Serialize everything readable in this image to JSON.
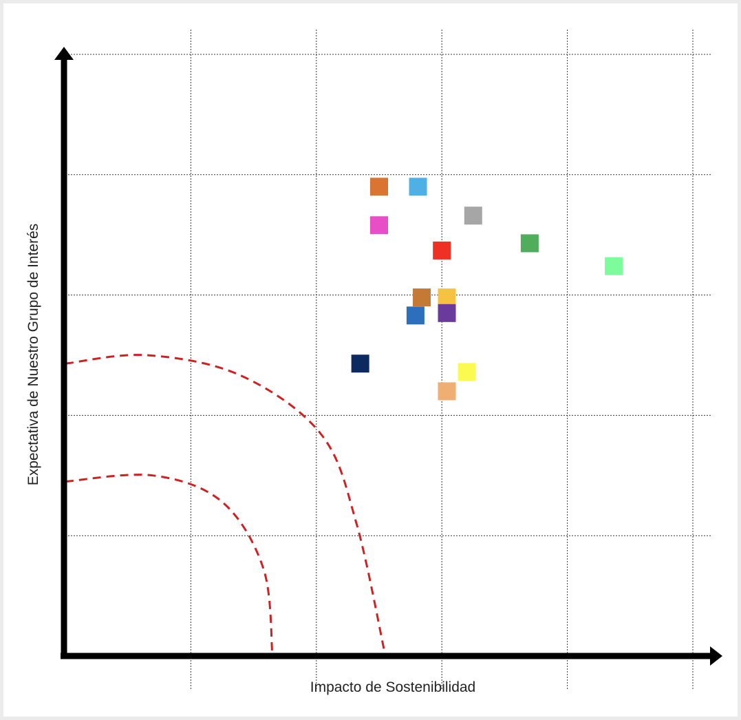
{
  "chart_data": {
    "type": "scatter",
    "title": "",
    "xlabel": "Impacto de Sostenibilidad",
    "ylabel": "Expectativa de Nuestro Grupo de Interés",
    "xlim": [
      0,
      5
    ],
    "ylim": [
      0,
      5
    ],
    "x_grid": [
      1,
      2,
      3,
      4,
      5
    ],
    "y_grid": [
      1,
      2,
      3,
      4,
      5
    ],
    "grid": true,
    "legend": "none",
    "points": [
      {
        "x": 2.5,
        "y": 3.9,
        "color": "#d97432"
      },
      {
        "x": 2.81,
        "y": 3.9,
        "color": "#4fb0e6"
      },
      {
        "x": 2.5,
        "y": 3.58,
        "color": "#e84fc6"
      },
      {
        "x": 3.25,
        "y": 3.66,
        "color": "#a6a6a6"
      },
      {
        "x": 3.0,
        "y": 3.37,
        "color": "#ee3124"
      },
      {
        "x": 3.7,
        "y": 3.43,
        "color": "#4fad5b"
      },
      {
        "x": 4.37,
        "y": 3.24,
        "color": "#7dfc9c"
      },
      {
        "x": 2.84,
        "y": 2.98,
        "color": "#c47a35"
      },
      {
        "x": 3.04,
        "y": 2.98,
        "color": "#f7c242"
      },
      {
        "x": 2.79,
        "y": 2.83,
        "color": "#2d6fba"
      },
      {
        "x": 3.04,
        "y": 2.85,
        "color": "#6a3b9c"
      },
      {
        "x": 2.35,
        "y": 2.43,
        "color": "#0d2a60"
      },
      {
        "x": 3.2,
        "y": 2.36,
        "color": "#fafa50"
      },
      {
        "x": 3.04,
        "y": 2.2,
        "color": "#efae72"
      }
    ],
    "boundaries": [
      {
        "style": "dashed",
        "color": "#cc2222",
        "points": [
          [
            0,
            2.43
          ],
          [
            0.65,
            2.5
          ],
          [
            1.4,
            2.33
          ],
          [
            2.04,
            1.84
          ],
          [
            2.32,
            1.1
          ],
          [
            2.55,
            0
          ]
        ]
      },
      {
        "style": "dashed",
        "color": "#cc2222",
        "points": [
          [
            0,
            1.45
          ],
          [
            0.7,
            1.5
          ],
          [
            1.25,
            1.28
          ],
          [
            1.58,
            0.72
          ],
          [
            1.65,
            0
          ]
        ]
      }
    ]
  }
}
